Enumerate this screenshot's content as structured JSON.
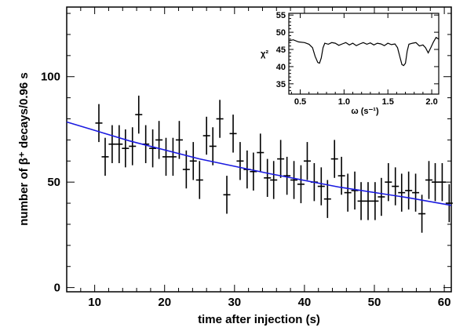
{
  "chart_data": [
    {
      "type": "scatter",
      "xlabel": "time after injection (s)",
      "ylabel": "number of β⁺ decays/0.96 s",
      "xlim": [
        6,
        61
      ],
      "ylim": [
        -2,
        133
      ],
      "xticks": [
        "10",
        "20",
        "30",
        "40",
        "50",
        "60"
      ],
      "yticks": [
        "0",
        "50",
        "100"
      ],
      "grid": false,
      "series": [
        {
          "kind": "points_with_errorbars",
          "x": [
            10.6,
            11.5,
            12.5,
            13.5,
            14.4,
            15.4,
            16.3,
            17.3,
            18.3,
            19.2,
            20.2,
            21.2,
            22.1,
            23.1,
            24.1,
            25.0,
            26.0,
            26.9,
            27.9,
            28.9,
            29.8,
            30.8,
            31.8,
            32.7,
            33.7,
            34.7,
            35.6,
            36.6,
            37.5,
            38.5,
            39.5,
            40.4,
            41.4,
            42.4,
            43.3,
            44.3,
            45.3,
            46.2,
            47.2,
            48.1,
            49.1,
            50.1,
            51.0,
            52.0,
            53.0,
            53.9,
            54.9,
            55.9,
            56.8,
            57.8,
            58.7,
            59.7,
            60.7
          ],
          "y": [
            78,
            62,
            68,
            68,
            66,
            67,
            82,
            68,
            66,
            70,
            62,
            62,
            70,
            56,
            60,
            51,
            72,
            67,
            80,
            44,
            73,
            60,
            56,
            55,
            64,
            52,
            51,
            61,
            53,
            51,
            49,
            60,
            50,
            48,
            42,
            61,
            53,
            45,
            46,
            41,
            41,
            41,
            43,
            50,
            48,
            45,
            46,
            45,
            35,
            51,
            50,
            50,
            40
          ],
          "yerr": 9
        },
        {
          "kind": "fit_line",
          "x": [
            6,
            15,
            25,
            35,
            45,
            55,
            61
          ],
          "y": [
            78.5,
            69.5,
            61.0,
            54.0,
            47.6,
            42.5,
            39.0
          ]
        }
      ]
    },
    {
      "type": "line",
      "inset": true,
      "xlabel": "ω (s⁻¹)",
      "ylabel": "χ²",
      "xlim": [
        0.37,
        2.08
      ],
      "ylim": [
        32,
        55.5
      ],
      "xticks": [
        "0.5",
        "1.0",
        "1.5",
        "2.0"
      ],
      "yticks": [
        "35",
        "40",
        "45",
        "50",
        "55"
      ],
      "series": [
        {
          "x": [
            0.37,
            0.42,
            0.48,
            0.55,
            0.6,
            0.64,
            0.67,
            0.7,
            0.72,
            0.74,
            0.76,
            0.78,
            0.82,
            0.86,
            0.9,
            0.94,
            0.98,
            1.02,
            1.06,
            1.1,
            1.14,
            1.18,
            1.22,
            1.26,
            1.3,
            1.34,
            1.38,
            1.42,
            1.46,
            1.5,
            1.54,
            1.58,
            1.61,
            1.64,
            1.66,
            1.68,
            1.7,
            1.72,
            1.74,
            1.78,
            1.82,
            1.86,
            1.9,
            1.93,
            1.96,
            1.99,
            2.02,
            2.05,
            2.08
          ],
          "y": [
            47.5,
            47.8,
            47.2,
            47.0,
            46.5,
            45.5,
            43.0,
            41.2,
            41.0,
            42.5,
            45.5,
            46.8,
            46.5,
            47.0,
            46.8,
            46.2,
            46.6,
            47.0,
            46.3,
            46.8,
            46.1,
            46.6,
            47.0,
            46.5,
            46.9,
            46.3,
            46.8,
            46.6,
            46.1,
            46.8,
            46.4,
            46.6,
            45.5,
            42.5,
            40.6,
            40.3,
            41.0,
            44.5,
            46.5,
            46.8,
            47.0,
            46.0,
            46.3,
            45.5,
            44.0,
            45.5,
            47.2,
            48.5,
            48.0
          ]
        }
      ]
    }
  ]
}
